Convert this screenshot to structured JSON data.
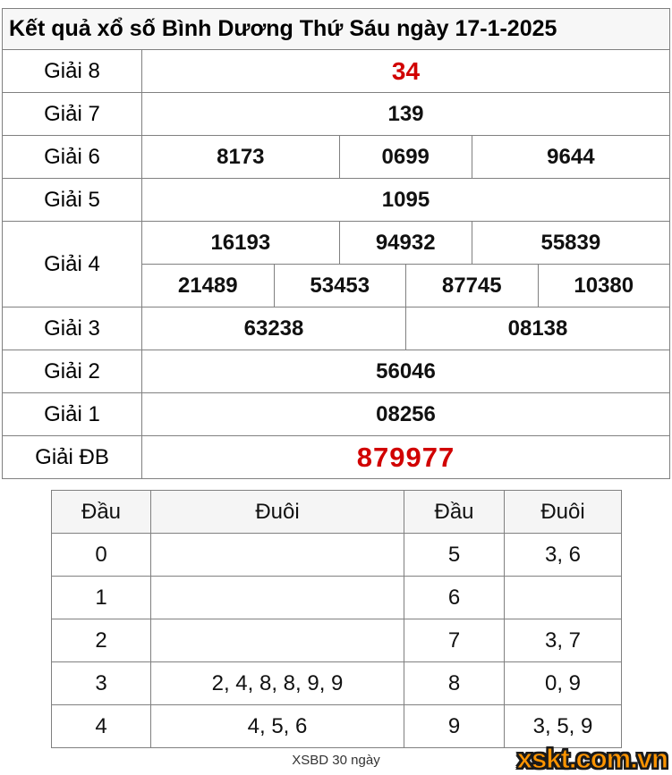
{
  "title": "Kết quả xổ số Bình Dương Thứ Sáu ngày 17-1-2025",
  "results_table": {
    "rows": [
      {
        "id": "g8",
        "label": "Giải 8",
        "highlight": true,
        "groups": [
          [
            "34"
          ]
        ]
      },
      {
        "id": "g7",
        "label": "Giải 7",
        "highlight": false,
        "groups": [
          [
            "139"
          ]
        ]
      },
      {
        "id": "g6",
        "label": "Giải 6",
        "highlight": false,
        "groups": [
          [
            "8173",
            "0699",
            "9644"
          ]
        ]
      },
      {
        "id": "g5",
        "label": "Giải 5",
        "highlight": false,
        "groups": [
          [
            "1095"
          ]
        ]
      },
      {
        "id": "g4",
        "label": "Giải 4",
        "highlight": false,
        "groups": [
          [
            "16193",
            "94932",
            "55839"
          ],
          [
            "21489",
            "53453",
            "87745",
            "10380"
          ]
        ]
      },
      {
        "id": "g3",
        "label": "Giải 3",
        "highlight": false,
        "groups": [
          [
            "63238",
            "08138"
          ]
        ]
      },
      {
        "id": "g2",
        "label": "Giải 2",
        "highlight": false,
        "groups": [
          [
            "56046"
          ]
        ]
      },
      {
        "id": "g1",
        "label": "Giải 1",
        "highlight": false,
        "groups": [
          [
            "08256"
          ]
        ]
      },
      {
        "id": "gdb",
        "label": "Giải ĐB",
        "highlight": true,
        "groups": [
          [
            "879977"
          ]
        ]
      }
    ]
  },
  "head_tail_table": {
    "headers": [
      "Đầu",
      "Đuôi",
      "Đầu",
      "Đuôi"
    ],
    "rows": [
      [
        "0",
        "",
        "5",
        "3, 6"
      ],
      [
        "1",
        "",
        "6",
        ""
      ],
      [
        "2",
        "",
        "7",
        "3, 7"
      ],
      [
        "3",
        "2, 4, 8, 8, 9, 9",
        "8",
        "0, 9"
      ],
      [
        "4",
        "4, 5, 6",
        "9",
        "3, 5, 9"
      ]
    ]
  },
  "footer": {
    "history_link": "XSBD 30 ngày",
    "logo": "xskt.com.vn"
  },
  "colors": {
    "highlight": "#d10000",
    "logo_orange": "#ff9500",
    "border": "#808080",
    "title_bg": "#f7f7f7",
    "header_bg": "#f5f5f5"
  }
}
